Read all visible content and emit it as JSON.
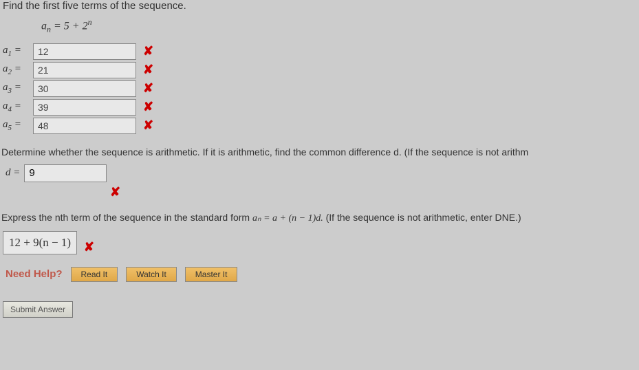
{
  "prompt1": "Find the first five terms of the sequence.",
  "formula_a": "a",
  "formula_n": "n",
  "formula_eq": " = 5 + 2",
  "terms": [
    {
      "label_a": "a",
      "sub": "1",
      "eq": " = ",
      "value": "12"
    },
    {
      "label_a": "a",
      "sub": "2",
      "eq": " = ",
      "value": "21"
    },
    {
      "label_a": "a",
      "sub": "3",
      "eq": " = ",
      "value": "30"
    },
    {
      "label_a": "a",
      "sub": "4",
      "eq": " = ",
      "value": "39"
    },
    {
      "label_a": "a",
      "sub": "5",
      "eq": " = ",
      "value": "48"
    }
  ],
  "x_glyph": "✘",
  "prompt2": "Determine whether the sequence is arithmetic. If it is arithmetic, find the common difference d. (If the sequence is not arithm",
  "d_label": "d = ",
  "d_value": "9",
  "prompt3_a": "Express the nth term of the sequence in the standard form  ",
  "prompt3_formula": "aₙ = a + (n − 1)d.",
  "prompt3_b": "  (If the sequence is not arithmetic, enter DNE.)",
  "nth_value": "12 + 9(n − 1)",
  "need_help_label": "Need Help?",
  "read_it": "Read It",
  "watch_it": "Watch It",
  "master_it": "Master It",
  "submit": "Submit Answer",
  "colors": {
    "bg": "#cccccc",
    "text": "#333333",
    "error": "#cc0000",
    "help_label": "#c0584a",
    "btn_bg": "#e8b858",
    "input_bg": "#e8e8e8",
    "input_border": "#888888"
  }
}
